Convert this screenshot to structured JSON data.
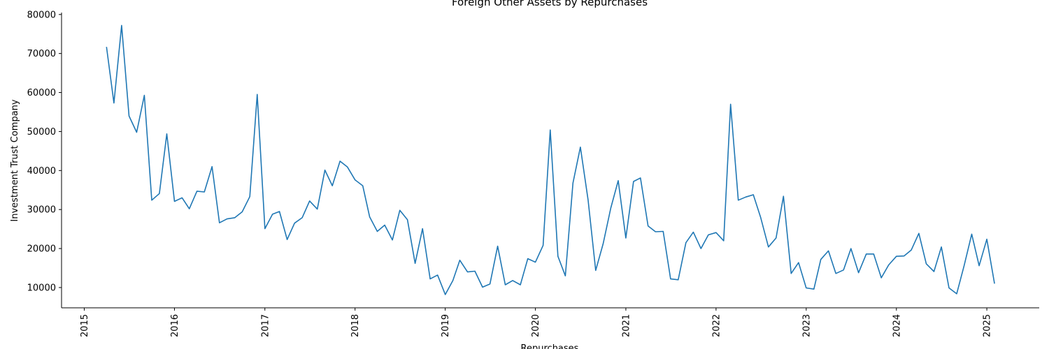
{
  "chart_data": {
    "type": "line",
    "title": "Foreign Other Assets by Repurchases",
    "xlabel": "Repurchases",
    "ylabel": "Investment Trust Company",
    "xlim": [
      "2014-10-01",
      "2025-08-01"
    ],
    "ylim": [
      4800,
      80500
    ],
    "x_ticks": [
      "2015",
      "2016",
      "2017",
      "2018",
      "2019",
      "2020",
      "2021",
      "2022",
      "2023",
      "2024",
      "2025"
    ],
    "y_ticks": [
      10000,
      20000,
      30000,
      40000,
      50000,
      60000,
      70000,
      80000
    ],
    "grid": false,
    "color": "#1f77b4",
    "series": [
      {
        "x": [
          "2015-04",
          "2015-05",
          "2015-06",
          "2015-07",
          "2015-08",
          "2015-09",
          "2015-10",
          "2015-11",
          "2015-12",
          "2016-01",
          "2016-02",
          "2016-03",
          "2016-04",
          "2016-05",
          "2016-06",
          "2016-07",
          "2016-08",
          "2016-09",
          "2016-10",
          "2016-11",
          "2016-12",
          "2017-01",
          "2017-02",
          "2017-03",
          "2017-04",
          "2017-05",
          "2017-06",
          "2017-07",
          "2017-08",
          "2017-09",
          "2017-10",
          "2017-11",
          "2017-12",
          "2018-01",
          "2018-02",
          "2018-03",
          "2018-04",
          "2018-05",
          "2018-06",
          "2018-07",
          "2018-08",
          "2018-09",
          "2018-10",
          "2018-11",
          "2018-12",
          "2019-01",
          "2019-02",
          "2019-03",
          "2019-04",
          "2019-05",
          "2019-06",
          "2019-07",
          "2019-08",
          "2019-09",
          "2019-10",
          "2019-11",
          "2019-12",
          "2020-01",
          "2020-02",
          "2020-03",
          "2020-04",
          "2020-05",
          "2020-06",
          "2020-07",
          "2020-08",
          "2020-09",
          "2020-10",
          "2020-11",
          "2020-12",
          "2021-01",
          "2021-02",
          "2021-03",
          "2021-04",
          "2021-05",
          "2021-06",
          "2021-07",
          "2021-08",
          "2021-09",
          "2021-10",
          "2021-11",
          "2021-12",
          "2022-01",
          "2022-02",
          "2022-03",
          "2022-04",
          "2022-05",
          "2022-06",
          "2022-07",
          "2022-08",
          "2022-09",
          "2022-10",
          "2022-11",
          "2022-12",
          "2023-01",
          "2023-02",
          "2023-03",
          "2023-04",
          "2023-05",
          "2023-06",
          "2023-07",
          "2023-08",
          "2023-09",
          "2023-10",
          "2023-11",
          "2023-12",
          "2024-01",
          "2024-02",
          "2024-03",
          "2024-04",
          "2024-05",
          "2024-06",
          "2024-07",
          "2024-08",
          "2024-09",
          "2024-10",
          "2024-11",
          "2024-12",
          "2025-01",
          "2025-02"
        ],
        "values": [
          71700,
          57300,
          77200,
          54000,
          49800,
          59300,
          32400,
          34100,
          49400,
          32100,
          33000,
          30200,
          34700,
          34500,
          41000,
          26600,
          27600,
          27900,
          29400,
          33300,
          59500,
          25100,
          28800,
          29500,
          22300,
          26500,
          27900,
          32200,
          30100,
          40100,
          36100,
          42400,
          40900,
          37600,
          36100,
          28100,
          24400,
          26000,
          22200,
          29800,
          27400,
          16200,
          25100,
          12200,
          13200,
          8200,
          11800,
          17000,
          14000,
          14200,
          10100,
          10900,
          20600,
          10700,
          11800,
          10700,
          17400,
          16500,
          20800,
          50400,
          18000,
          13000,
          36800,
          46000,
          32500,
          14400,
          21200,
          30400,
          37400,
          22700,
          37200,
          38100,
          25800,
          24300,
          24400,
          12200,
          12000,
          21500,
          24200,
          20000,
          23500,
          24100,
          22000,
          57000,
          32400,
          33200,
          33800,
          27900,
          20400,
          22700,
          33400,
          13600,
          16400,
          9900,
          9600,
          17200,
          19400,
          13600,
          14500,
          20000,
          13800,
          18600,
          18600,
          12500,
          15800,
          18000,
          18100,
          19600,
          23900,
          16100,
          14100,
          20400,
          9900,
          8400,
          15600,
          23700,
          15600,
          22400,
          11000
        ]
      }
    ]
  }
}
